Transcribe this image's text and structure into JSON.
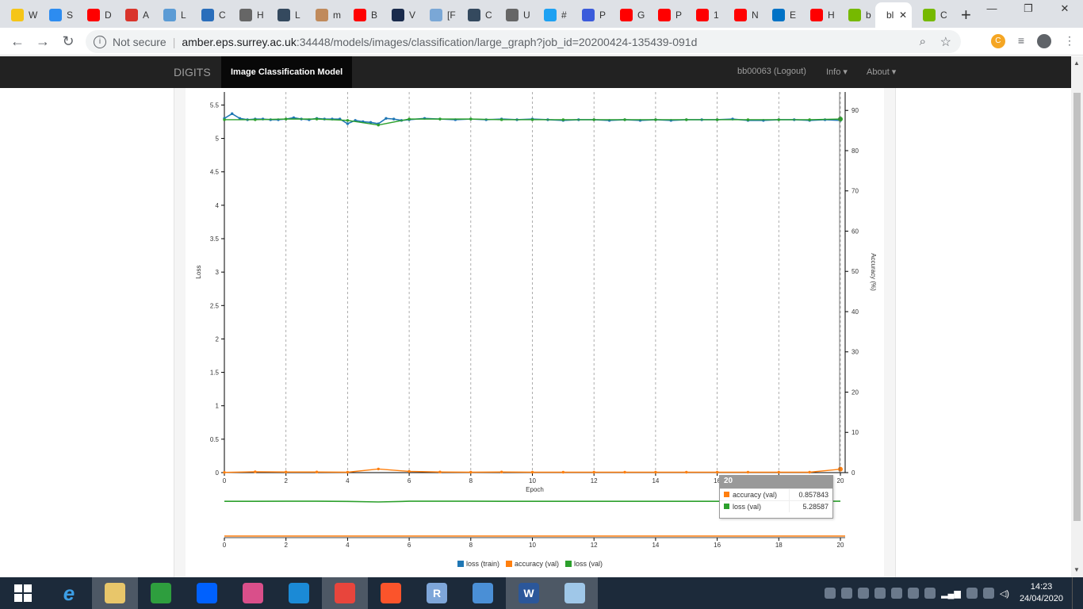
{
  "browser": {
    "tabs": [
      {
        "label": "W",
        "color": "#f5c518"
      },
      {
        "label": "S",
        "color": "#2d8cf0"
      },
      {
        "label": "D",
        "color": "#ff0000"
      },
      {
        "label": "A",
        "color": "#d9342b"
      },
      {
        "label": "L",
        "color": "#5b9bd5"
      },
      {
        "label": "C",
        "color": "#2a6ebb"
      },
      {
        "label": "H",
        "color": "#666666"
      },
      {
        "label": "L",
        "color": "#34495e"
      },
      {
        "label": "m",
        "color": "#c08a5b"
      },
      {
        "label": "B",
        "color": "#ff0000"
      },
      {
        "label": "V",
        "color": "#1a2b4c"
      },
      {
        "label": "[F",
        "color": "#7aa7d6"
      },
      {
        "label": "C",
        "color": "#34495e"
      },
      {
        "label": "U",
        "color": "#666666"
      },
      {
        "label": "#",
        "color": "#1da1f2"
      },
      {
        "label": "P",
        "color": "#3b5bdb"
      },
      {
        "label": "G",
        "color": "#ff0000"
      },
      {
        "label": "P",
        "color": "#ff0000"
      },
      {
        "label": "1",
        "color": "#ff0000"
      },
      {
        "label": "N",
        "color": "#ff0000"
      },
      {
        "label": "E",
        "color": "#0072c6"
      },
      {
        "label": "H",
        "color": "#ff0000"
      },
      {
        "label": "b",
        "color": "#76b900"
      }
    ],
    "active_tab": {
      "label": "bl",
      "close": "✕"
    },
    "after_tab": {
      "label": "C",
      "color": "#76b900"
    },
    "new_tab": "+",
    "window_controls": [
      "—",
      "❐",
      "✕"
    ],
    "back": "←",
    "forward": "→",
    "reload": "↻",
    "security_label": "Not secure",
    "url_host": "amber.eps.surrey.ac.uk",
    "url_path": ":34448/models/images/classification/large_graph?job_id=20200424-135439-091d",
    "extension_label": "C"
  },
  "app": {
    "brand": "DIGITS",
    "active_nav": "Image Classification Model",
    "user": "bb00063 (Logout)",
    "info_menu": "Info",
    "about_menu": "About"
  },
  "chart_data": {
    "type": "line",
    "x": [
      0,
      0.25,
      0.5,
      0.75,
      1,
      1.25,
      1.5,
      1.75,
      2,
      2.25,
      2.5,
      2.75,
      3,
      3.25,
      3.5,
      3.75,
      4,
      4.25,
      4.5,
      4.75,
      5,
      5.25,
      5.5,
      5.75,
      6,
      6.5,
      7,
      7.5,
      8,
      8.5,
      9,
      9.5,
      10,
      10.5,
      11,
      11.5,
      12,
      12.5,
      13,
      13.5,
      14,
      14.5,
      15,
      15.5,
      16,
      16.5,
      17,
      17.5,
      18,
      18.5,
      19,
      19.5,
      20
    ],
    "series": [
      {
        "name": "loss (train)",
        "axis": "left",
        "color": "#1f77b4",
        "values": [
          5.3,
          5.37,
          5.3,
          5.28,
          5.29,
          5.29,
          5.28,
          5.28,
          5.29,
          5.31,
          5.29,
          5.28,
          5.3,
          5.29,
          5.29,
          5.29,
          5.22,
          5.27,
          5.25,
          5.24,
          5.22,
          5.3,
          5.29,
          5.27,
          5.28,
          5.3,
          5.29,
          5.28,
          5.29,
          5.28,
          5.29,
          5.28,
          5.29,
          5.28,
          5.27,
          5.28,
          5.28,
          5.27,
          5.28,
          5.27,
          5.28,
          5.27,
          5.28,
          5.28,
          5.28,
          5.29,
          5.27,
          5.27,
          5.28,
          5.28,
          5.27,
          5.28,
          5.27
        ]
      },
      {
        "name": "accuracy (val)",
        "axis": "right",
        "color": "#ff7f0e",
        "x": [
          0,
          1,
          2,
          3,
          4,
          5,
          6,
          7,
          8,
          9,
          10,
          11,
          12,
          13,
          14,
          15,
          16,
          17,
          18,
          19,
          20
        ],
        "values": [
          0.05,
          0.2,
          0.15,
          0.15,
          0.1,
          0.9,
          0.3,
          0.15,
          0.1,
          0.15,
          0.1,
          0.1,
          0.1,
          0.1,
          0.1,
          0.1,
          0.1,
          0.1,
          0.1,
          0.1,
          0.86
        ]
      },
      {
        "name": "loss (val)",
        "axis": "left",
        "color": "#2ca02c",
        "x": [
          0,
          1,
          2,
          3,
          4,
          5,
          6,
          7,
          8,
          9,
          10,
          11,
          12,
          13,
          14,
          15,
          16,
          17,
          18,
          19,
          20
        ],
        "values": [
          5.28,
          5.28,
          5.29,
          5.29,
          5.27,
          5.2,
          5.29,
          5.29,
          5.29,
          5.28,
          5.28,
          5.28,
          5.28,
          5.28,
          5.28,
          5.28,
          5.28,
          5.28,
          5.28,
          5.28,
          5.29
        ]
      }
    ],
    "xlabel": "Epoch",
    "ylabel_left": "Loss",
    "ylabel_right": "Accuracy (%)",
    "xlim": [
      0,
      20
    ],
    "ylim_left": [
      0,
      5.6
    ],
    "ylim_right": [
      0,
      93
    ],
    "xticks": [
      0,
      2,
      4,
      6,
      8,
      10,
      12,
      14,
      16,
      18,
      20
    ],
    "yticks_left": [
      0,
      0.5,
      1,
      1.5,
      2,
      2.5,
      3,
      3.5,
      4,
      4.5,
      5,
      5.5
    ],
    "yticks_right": [
      0,
      10,
      20,
      30,
      40,
      50,
      60,
      70,
      80,
      90
    ],
    "grid": "vertical dashed",
    "legend_placement": "bottom"
  },
  "navigator": {
    "xticks": [
      0,
      2,
      4,
      6,
      8,
      10,
      12,
      14,
      16,
      18,
      20
    ]
  },
  "tooltip": {
    "header": "20",
    "rows": [
      {
        "label": "accuracy (val)",
        "value": "0.857843",
        "color": "#ff7f0e"
      },
      {
        "label": "loss (val)",
        "value": "5.28587",
        "color": "#2ca02c"
      }
    ]
  },
  "legend": [
    {
      "label": "loss (train)",
      "color": "#1f77b4"
    },
    {
      "label": "accuracy (val)",
      "color": "#ff7f0e"
    },
    {
      "label": "loss (val)",
      "color": "#2ca02c"
    }
  ],
  "taskbar": {
    "items": [
      {
        "name": "file-explorer-icon",
        "glyph": "",
        "color": "#e8c66a",
        "selected": true
      },
      {
        "name": "store-icon",
        "glyph": "",
        "color": "#2e9e3e"
      },
      {
        "name": "dropbox-icon",
        "glyph": "",
        "color": "#0061fe"
      },
      {
        "name": "paint-icon",
        "glyph": "",
        "color": "#d94f8a"
      },
      {
        "name": "onedrive-icon",
        "glyph": "",
        "color": "#1b8ad6"
      },
      {
        "name": "chrome-icon",
        "glyph": "",
        "color": "#e8453c",
        "selected": true
      },
      {
        "name": "brave-icon",
        "glyph": "",
        "color": "#fb542b"
      },
      {
        "name": "r-icon",
        "glyph": "R",
        "color": "#7ea6d9"
      },
      {
        "name": "globe-icon",
        "glyph": "",
        "color": "#4a8fd6"
      },
      {
        "name": "word-icon",
        "glyph": "W",
        "color": "#2b579a",
        "selected": true
      },
      {
        "name": "notes-icon",
        "glyph": "",
        "color": "#9fc7e8",
        "selected": true
      }
    ],
    "time": "14:23",
    "date": "24/04/2020"
  }
}
